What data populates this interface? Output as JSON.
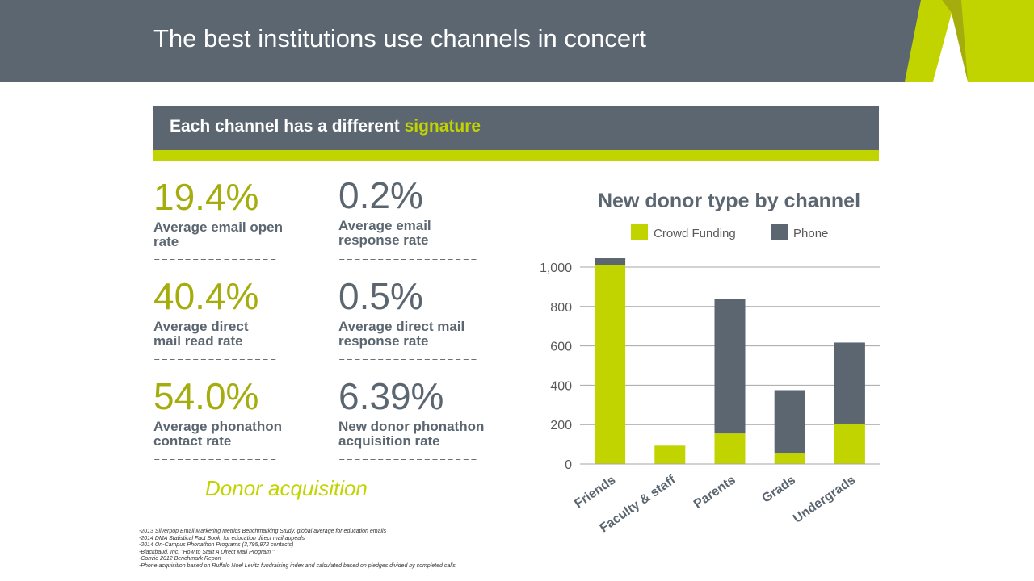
{
  "slide": {
    "title": "The best institutions use channels in concert",
    "banner_text": "Each channel has a different ",
    "banner_highlight": "signature"
  },
  "stats": [
    {
      "value": "19.4%",
      "label_line1": "Average email open",
      "label_line2": "rate",
      "color": "green"
    },
    {
      "value": "0.2%",
      "label_line1": "Average email",
      "label_line2": "response rate",
      "color": "gray"
    },
    {
      "value": "40.4%",
      "label_line1": "Average direct",
      "label_line2": "mail read rate",
      "color": "green"
    },
    {
      "value": "0.5%",
      "label_line1": "Average direct mail",
      "label_line2": "response rate",
      "color": "gray"
    },
    {
      "value": "54.0%",
      "label_line1": "Average phonathon",
      "label_line2": "contact rate",
      "color": "green"
    },
    {
      "value": "6.39%",
      "label_line1": "New donor phonathon",
      "label_line2": "acquisition rate",
      "color": "gray"
    }
  ],
  "donor_acquisition": "Donor acquisition",
  "footnotes": [
    "-2013 Silverpop Email Marketing Metrics Benchmarking Study, global average for education emails",
    "-2014 DMA Statistical Fact Book, for education direct mail appeals",
    "-2014 On-Campus Phonathon Programs (3,795,972 contacts)",
    "-Blackbaud, Inc. \"How to Start A Direct Mail Program.\"",
    "-Convio 2012 Benchmark Report",
    "-Phone acquisition based on Ruffalo Noel Levitz fundraising index and calculated based on pledges divided by completed calls"
  ],
  "colors": {
    "accent_green": "#c1d400",
    "dark_gray": "#5b6670",
    "stat_green": "#a4ad0d"
  },
  "chart_data": {
    "type": "bar",
    "stacked": true,
    "title": "New donor type by channel",
    "categories": [
      "Friends",
      "Faculty & staff",
      "Parents",
      "Grads",
      "Undergrads"
    ],
    "series": [
      {
        "name": "Crowd Funding",
        "color": "#c1d400",
        "values": [
          1010,
          93,
          155,
          57,
          205
        ]
      },
      {
        "name": "Phone",
        "color": "#5b6670",
        "values": [
          35,
          0,
          683,
          318,
          412
        ]
      }
    ],
    "ylim": [
      0,
      1000
    ],
    "yticks": [
      0,
      200,
      400,
      600,
      800,
      1000
    ],
    "ytick_labels": [
      "0",
      "200",
      "400",
      "600",
      "800",
      "1,000"
    ],
    "grid": true,
    "legend_position": "top"
  }
}
